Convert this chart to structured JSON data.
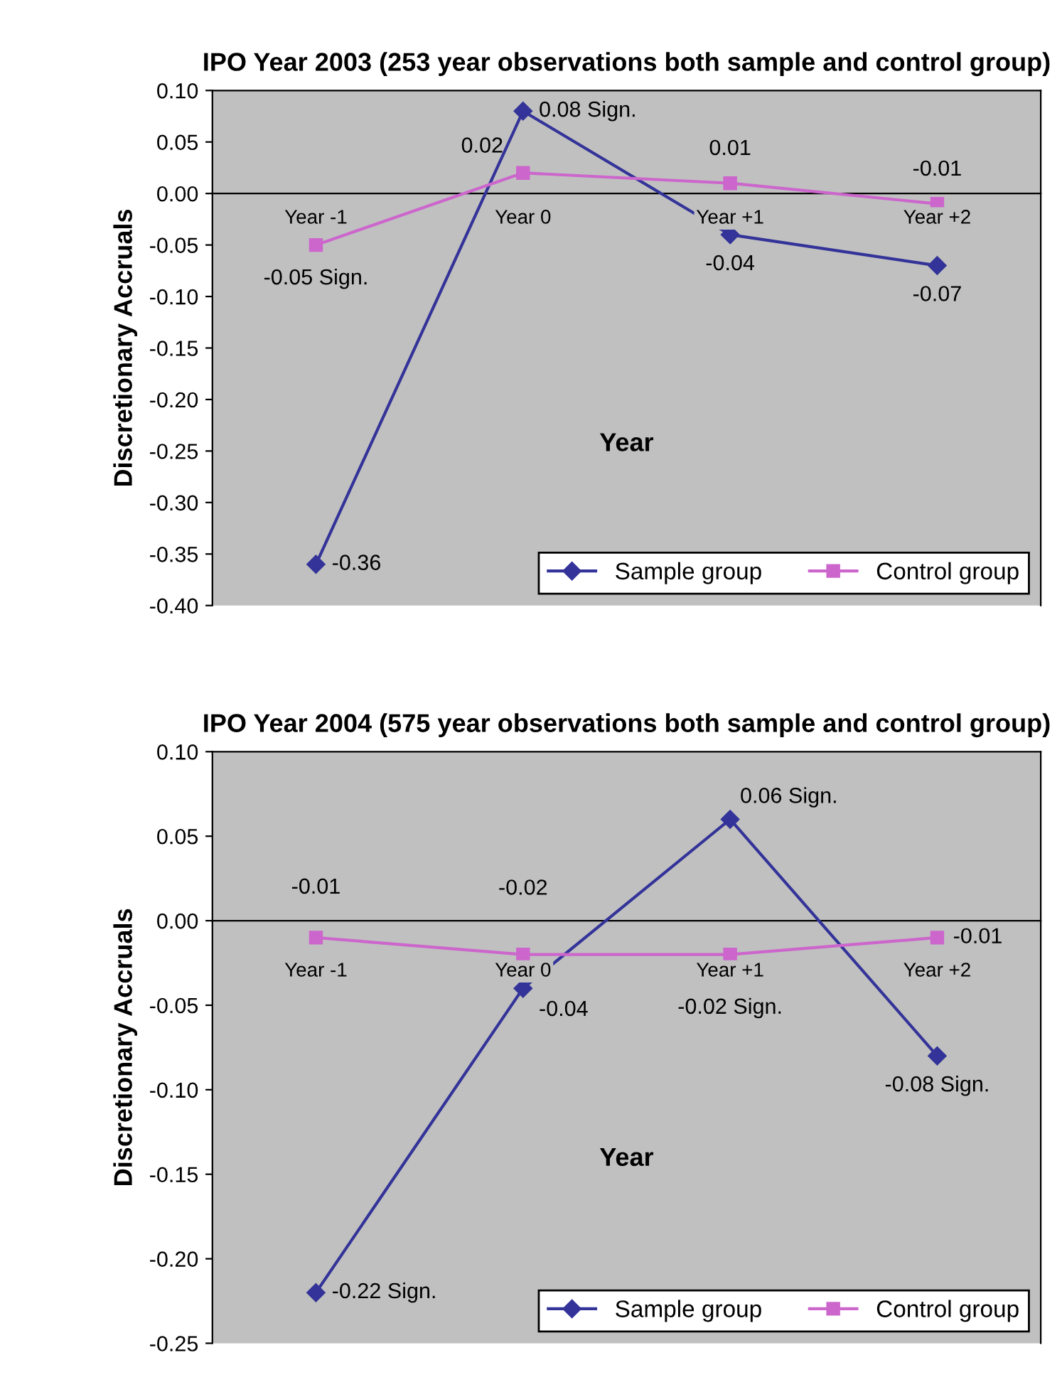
{
  "chart_data": [
    {
      "type": "line",
      "title": "IPO Year 2003 (253 year observations both sample and control group)",
      "xlabel": "Year",
      "ylabel": "Discretionary Accruals",
      "categories": [
        "Year -1",
        "Year 0",
        "Year +1",
        "Year +2"
      ],
      "series": [
        {
          "name": "Sample group",
          "color": "#333399",
          "marker": "diamond",
          "values": [
            -0.36,
            0.08,
            -0.04,
            -0.07
          ],
          "value_labels": [
            "-0.36",
            "0.08 Sign.",
            "-0.04",
            "-0.07"
          ]
        },
        {
          "name": "Control group",
          "color": "#cc66cc",
          "marker": "square",
          "values": [
            -0.05,
            0.02,
            0.01,
            -0.01
          ],
          "value_labels": [
            "-0.05 Sign.",
            "0.02",
            "0.01",
            "-0.01"
          ]
        }
      ],
      "ylim": [
        -0.4,
        0.1
      ],
      "yticks": [
        {
          "value": -0.4,
          "label": "-0.40"
        },
        {
          "value": -0.35,
          "label": "-0.35"
        },
        {
          "value": -0.3,
          "label": "-0.30"
        },
        {
          "value": -0.25,
          "label": "-0.25"
        },
        {
          "value": -0.2,
          "label": "-0.20"
        },
        {
          "value": -0.15,
          "label": "-0.15"
        },
        {
          "value": -0.1,
          "label": "-0.10"
        },
        {
          "value": -0.05,
          "label": "-0.05"
        },
        {
          "value": 0,
          "label": "0.00"
        },
        {
          "value": 0.05,
          "label": "0.05"
        },
        {
          "value": 0.1,
          "label": "0.10"
        }
      ],
      "legend": "bottom right",
      "grid": false
    },
    {
      "type": "line",
      "title": "IPO Year 2004 (575 year observations both sample and control group)",
      "xlabel": "Year",
      "ylabel": "Discretionary Accruals",
      "categories": [
        "Year -1",
        "Year 0",
        "Year +1",
        "Year +2"
      ],
      "series": [
        {
          "name": "Sample group",
          "color": "#333399",
          "marker": "diamond",
          "values": [
            -0.22,
            -0.04,
            0.06,
            -0.08
          ],
          "value_labels": [
            "-0.22 Sign.",
            "-0.04",
            "0.06 Sign.",
            "-0.08 Sign."
          ]
        },
        {
          "name": "Control group",
          "color": "#cc66cc",
          "marker": "square",
          "values": [
            -0.01,
            -0.02,
            -0.02,
            -0.01
          ],
          "value_labels": [
            "-0.01",
            "-0.02",
            "-0.02 Sign.",
            "-0.01"
          ]
        }
      ],
      "ylim": [
        -0.25,
        0.1
      ],
      "yticks": [
        {
          "value": -0.25,
          "label": "-0.25"
        },
        {
          "value": -0.2,
          "label": "-0.20"
        },
        {
          "value": -0.15,
          "label": "-0.15"
        },
        {
          "value": -0.1,
          "label": "-0.10"
        },
        {
          "value": -0.05,
          "label": "-0.05"
        },
        {
          "value": 0,
          "label": "0.00"
        },
        {
          "value": 0.05,
          "label": "0.05"
        },
        {
          "value": 0.1,
          "label": "0.10"
        }
      ],
      "legend": "bottom right",
      "grid": false
    }
  ]
}
